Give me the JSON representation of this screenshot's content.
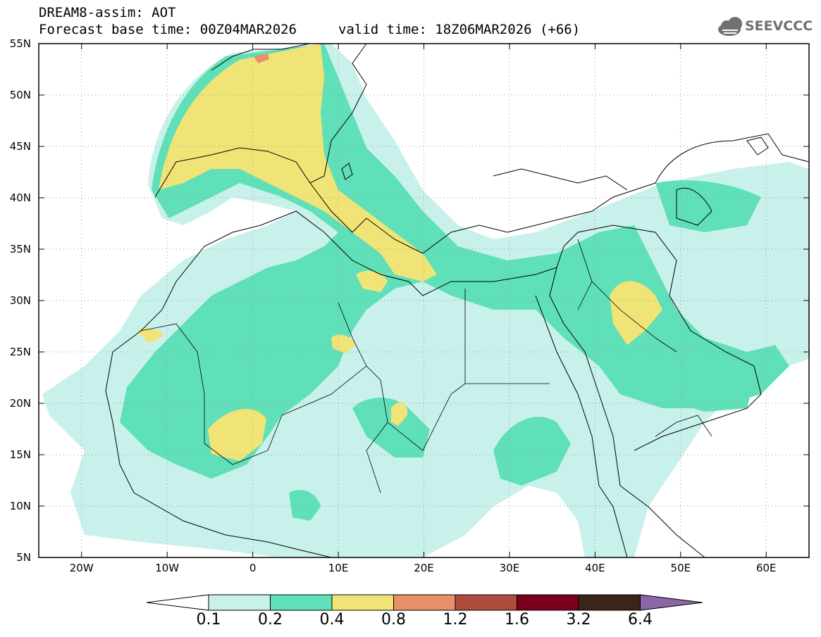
{
  "header": {
    "title_line1": "DREAM8-assim: AOT",
    "title_line2": "Forecast base time: 00Z04MAR2026",
    "valid_time": "valid time: 18Z06MAR2026 (+66)",
    "logo_text": "SEEVCCC",
    "logo_icon": "cloud-icon"
  },
  "map": {
    "variable": "AOT",
    "model": "DREAM8-assim",
    "lon_range": [
      -25,
      65
    ],
    "lat_range": [
      5,
      55
    ],
    "lat_labels": [
      "55N",
      "50N",
      "45N",
      "40N",
      "35N",
      "30N",
      "25N",
      "20N",
      "15N",
      "10N",
      "5N"
    ],
    "lon_labels": [
      "20W",
      "10W",
      "0",
      "10E",
      "20E",
      "30E",
      "40E",
      "50E",
      "60E"
    ]
  },
  "colorbar": {
    "levels": [
      "0.1",
      "0.2",
      "0.4",
      "0.8",
      "1.2",
      "1.6",
      "3.2",
      "6.4"
    ],
    "colors": [
      "#ffffff",
      "#c8f1ec",
      "#5fe0b8",
      "#f1e477",
      "#e8906a",
      "#b04c3c",
      "#7b001c",
      "#3c2418",
      "#8a68a6"
    ]
  }
}
